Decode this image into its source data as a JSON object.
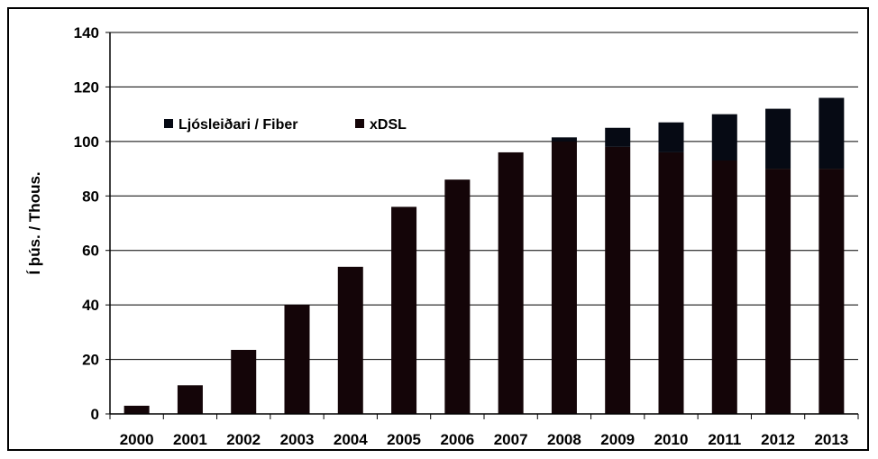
{
  "chart_data": {
    "type": "bar",
    "stacked": true,
    "title": "",
    "xlabel": "",
    "ylabel": "Í þús. / Thous.",
    "ylim": [
      0,
      140
    ],
    "yticks": [
      0,
      20,
      40,
      60,
      80,
      100,
      120,
      140
    ],
    "grid": true,
    "legend_position": "top-left",
    "categories": [
      "2000",
      "2001",
      "2002",
      "2003",
      "2004",
      "2005",
      "2006",
      "2007",
      "2008",
      "2009",
      "2010",
      "2011",
      "2012",
      "2013"
    ],
    "series": [
      {
        "name": "xDSL",
        "color": "#140508",
        "values": [
          3,
          10.5,
          23.5,
          40,
          54,
          76,
          86,
          96,
          100,
          98,
          96,
          93,
          90,
          90
        ]
      },
      {
        "name": "Ljósleiðari / Fiber",
        "color": "#060a14",
        "values": [
          0,
          0,
          0,
          0,
          0,
          0,
          0,
          0,
          1.5,
          7,
          11,
          17,
          22,
          26
        ]
      }
    ]
  }
}
